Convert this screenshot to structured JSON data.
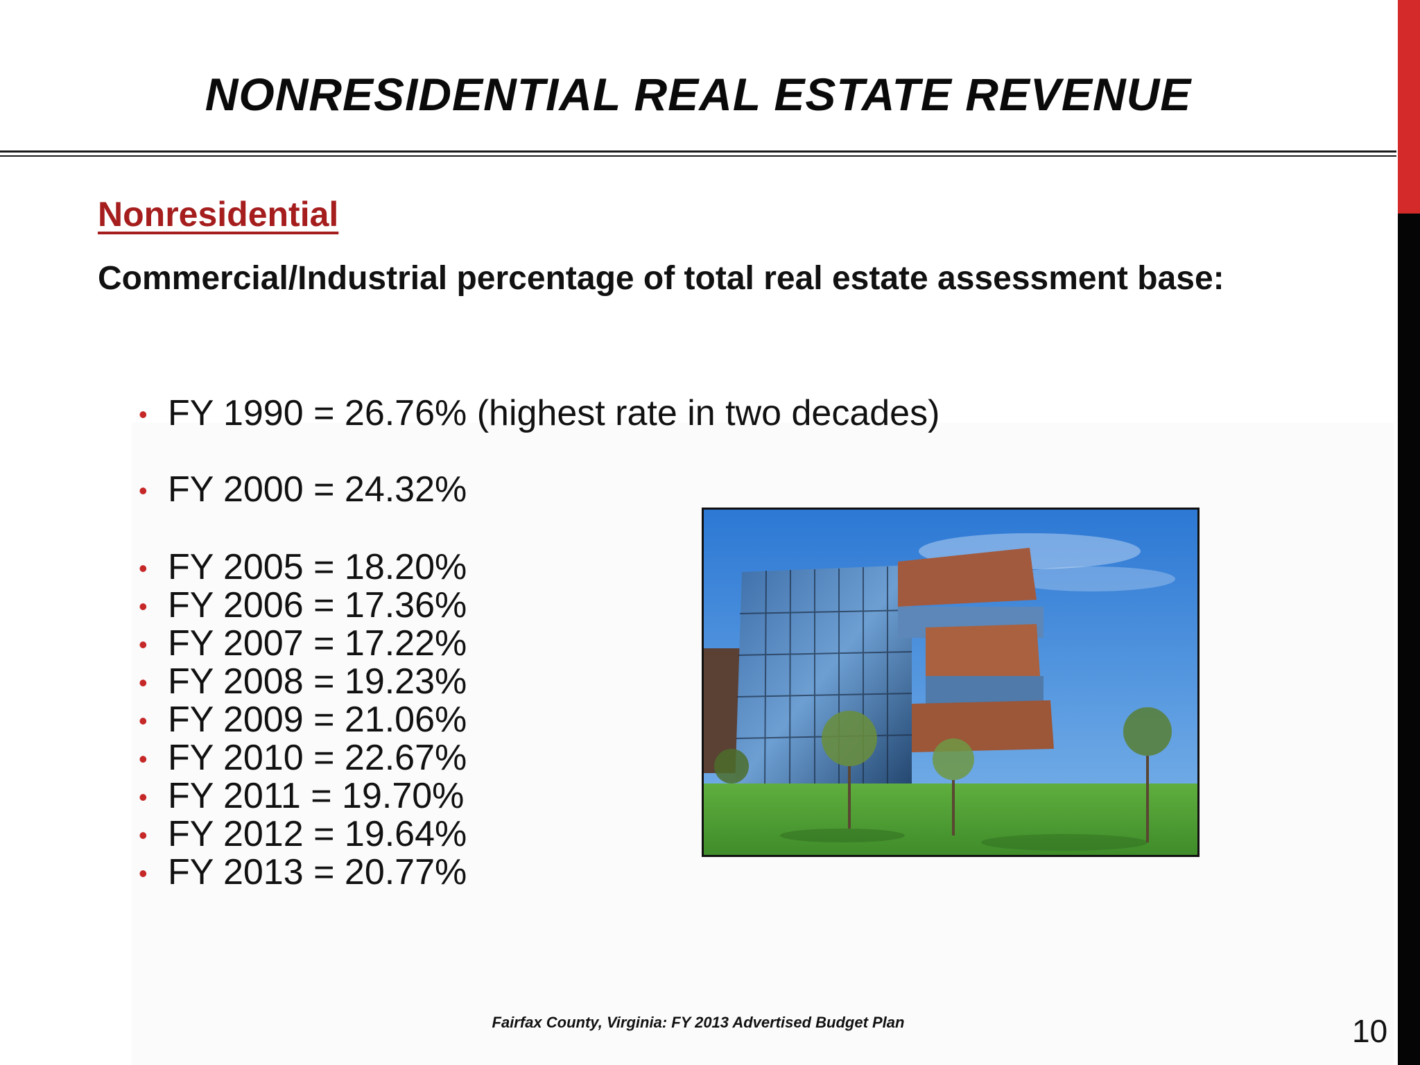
{
  "slide": {
    "title": "NONRESIDENTIAL REAL ESTATE REVENUE",
    "section_label": "Nonresidential",
    "intro": "Commercial/Industrial percentage of total real estate assessment base:",
    "bullets": [
      {
        "text": "FY 1990 = 26.76% (highest rate in two decades)"
      },
      {
        "text": "FY 2000 = 24.32%"
      },
      {
        "text": "FY 2005 = 18.20%"
      },
      {
        "text": "FY 2006 = 17.36%"
      },
      {
        "text": "FY 2007 = 17.22%"
      },
      {
        "text": "FY 2008 = 19.23%"
      },
      {
        "text": "FY 2009 = 21.06%"
      },
      {
        "text": "FY 2010 = 22.67%"
      },
      {
        "text": "FY 2011 = 19.70%"
      },
      {
        "text": "FY 2012 = 19.64%"
      },
      {
        "text": "FY 2013 = 20.77%"
      }
    ],
    "bullet_glyph": "•",
    "footer": "Fairfax County, Virginia: FY 2013 Advertised Budget Plan",
    "page_number": "10"
  },
  "image": {
    "icon": "office-building-photo"
  },
  "colors": {
    "accent_red": "#c62828",
    "section_red": "#a51d1d",
    "side_bar_red": "#d42a2a",
    "side_bar_black": "#050505"
  }
}
